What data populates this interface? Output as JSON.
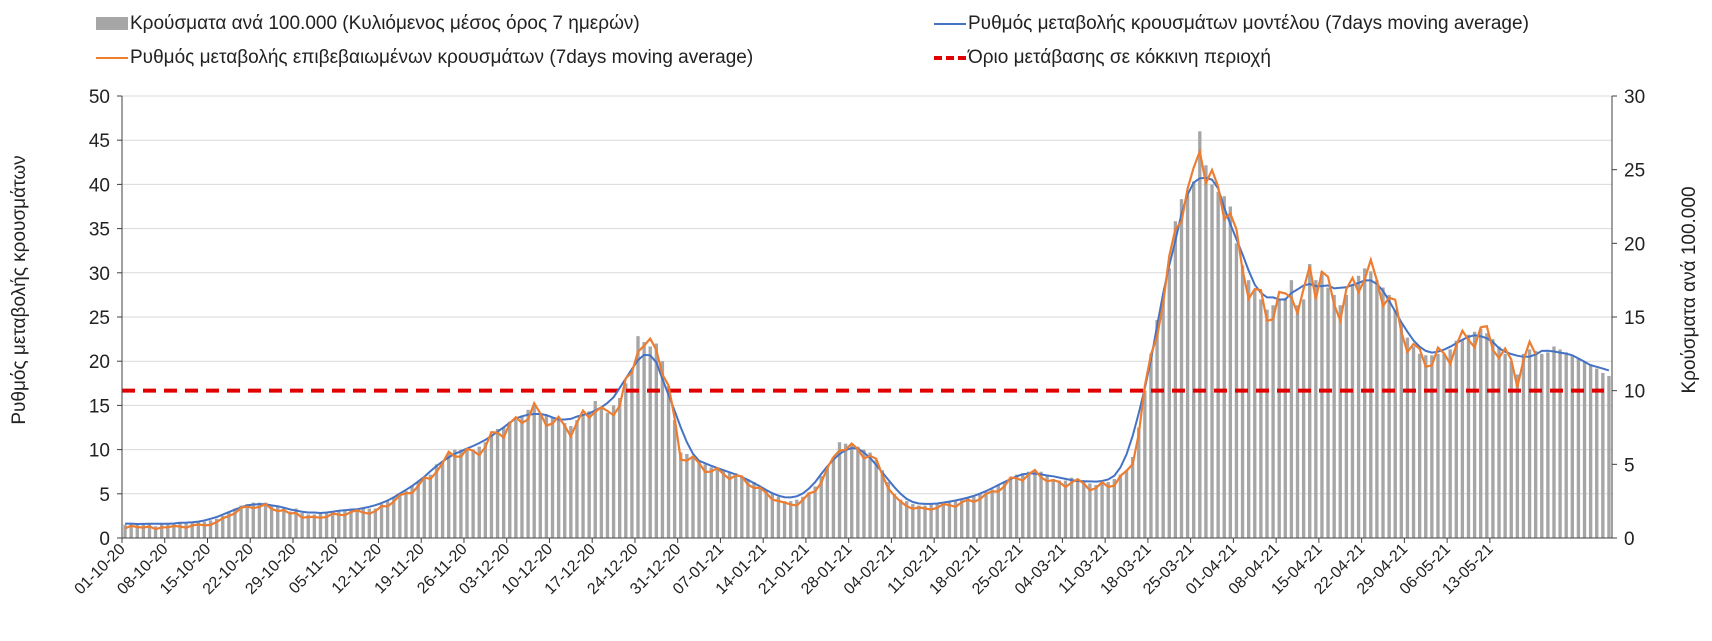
{
  "chart_data": {
    "type": "bar+line",
    "legend": [
      {
        "label": "Κρούσματα ανά 100.000 (Κυλιόμενος μέσος όρος 7 ημερών)",
        "kind": "bar",
        "color": "#a6a6a6"
      },
      {
        "label": "Ρυθμός μεταβολής κρουσμάτων μοντέλου (7days moving average)",
        "kind": "line",
        "color": "#4472c4"
      },
      {
        "label": "Ρυθμός μεταβολής επιβεβαιωμένων κρουσμάτων (7days moving average)",
        "kind": "line",
        "color": "#ed7d31"
      },
      {
        "label": "Όριο μετάβασης σε κόκκινη περιοχή",
        "kind": "dashed",
        "color": "#e00000"
      }
    ],
    "ylabel_left": "Ρυθμός μεταβολής κρουσμάτων",
    "ylabel_right": "Κρούσματα ανά 100.000",
    "ylim_left": [
      0,
      50
    ],
    "ylim_right": [
      0,
      30
    ],
    "yticks_left": [
      "0",
      "5",
      "10",
      "15",
      "20",
      "25",
      "30",
      "35",
      "40",
      "45",
      "50"
    ],
    "yticks_right": [
      "0",
      "5",
      "10",
      "15",
      "20",
      "25",
      "30"
    ],
    "grid": true,
    "x_start": "01-10-20",
    "x_tick_labels": [
      "01-10-20",
      "08-10-20",
      "15-10-20",
      "22-10-20",
      "29-10-20",
      "05-11-20",
      "12-11-20",
      "19-11-20",
      "26-11-20",
      "03-12-20",
      "10-12-20",
      "17-12-20",
      "24-12-20",
      "31-12-20",
      "07-01-21",
      "14-01-21",
      "21-01-21",
      "28-01-21",
      "04-02-21",
      "11-02-21",
      "18-02-21",
      "25-02-21",
      "04-03-21",
      "11-03-21",
      "18-03-21",
      "25-03-21",
      "01-04-21",
      "08-04-21",
      "15-04-21",
      "22-04-21",
      "29-04-21",
      "06-05-21",
      "13-05-21"
    ],
    "bars_per_100k": [
      0.9,
      1.0,
      1.0,
      1.0,
      1.0,
      0.8,
      1.0,
      1.0,
      1.0,
      1.0,
      1.0,
      1.1,
      1.1,
      1.1,
      1.2,
      1.3,
      1.5,
      1.8,
      2.0,
      2.2,
      2.3,
      2.4,
      2.4,
      2.4,
      2.2,
      2.2,
      2.1,
      1.8,
      2.0,
      1.7,
      1.6,
      1.6,
      1.7,
      1.7,
      1.8,
      1.8,
      1.9,
      2.0,
      2.0,
      2.0,
      2.0,
      2.0,
      2.3,
      2.5,
      2.8,
      3.0,
      3.2,
      3.5,
      3.8,
      4.1,
      4.3,
      5.0,
      5.2,
      5.8,
      6.0,
      6.0,
      6.0,
      6.0,
      6.2,
      6.5,
      7.0,
      7.4,
      7.5,
      7.9,
      8.0,
      8.3,
      8.7,
      9.0,
      8.4,
      8.3,
      8.2,
      8.0,
      7.8,
      7.6,
      8.0,
      8.4,
      8.6,
      9.3,
      8.8,
      8.5,
      9.0,
      9.5,
      10.5,
      11.3,
      13.7,
      13.3,
      13.0,
      13.2,
      12.0,
      10.3,
      8.0,
      5.8,
      5.7,
      5.5,
      5.2,
      5.0,
      4.8,
      4.7,
      4.6,
      4.5,
      4.4,
      4.2,
      4.0,
      3.8,
      3.5,
      3.2,
      3.0,
      2.8,
      2.5,
      2.5,
      2.6,
      2.8,
      3.1,
      3.5,
      4.2,
      4.8,
      5.5,
      6.5,
      6.4,
      6.3,
      6.2,
      6.0,
      5.8,
      5.3,
      4.6,
      3.8,
      3.0,
      2.6,
      2.5,
      2.3,
      2.2,
      2.2,
      2.3,
      2.3,
      2.4,
      2.5,
      2.5,
      2.6,
      2.7,
      2.8,
      3.0,
      3.1,
      3.3,
      3.6,
      3.8,
      4.1,
      4.3,
      4.4,
      4.5,
      4.6,
      4.5,
      4.3,
      4.0,
      3.9,
      3.9,
      4.1,
      4.0,
      3.9,
      3.7,
      3.6,
      3.8,
      3.8,
      4.0,
      4.3,
      4.6,
      5.5,
      7.5,
      10.0,
      12.5,
      14.8,
      16.2,
      18.3,
      21.5,
      23.0,
      23.3,
      24.2,
      27.6,
      25.3,
      24.0,
      23.5,
      23.2,
      22.5,
      20.0,
      18.5,
      17.5,
      16.8,
      16.2,
      15.5,
      15.8,
      16.2,
      16.3,
      17.5,
      15.8,
      16.2,
      18.6,
      17.5,
      18.1,
      17.0,
      16.5,
      15.8,
      16.5,
      17.2,
      17.8,
      18.3,
      18.1,
      17.5,
      17.0,
      16.5,
      15.5,
      14.5,
      13.6,
      13.0,
      12.5,
      12.4,
      12.4,
      12.5,
      12.5,
      12.8,
      13.4,
      13.5,
      13.8,
      14.0,
      14.2,
      13.9,
      13.5,
      13.0,
      12.5,
      12.0,
      11.1,
      12.5,
      12.8,
      12.7,
      12.5,
      12.6,
      13.0,
      12.8,
      12.6,
      12.4,
      12.2,
      12.0,
      11.8,
      11.5,
      11.2,
      11.0
    ]
  },
  "ui": {
    "colors": {
      "bar": "#a6a6a6",
      "model": "#4472c4",
      "observed": "#ed7d31",
      "threshold": "#e00000",
      "grid": "#d9d9d9",
      "axis": "#404040"
    }
  }
}
